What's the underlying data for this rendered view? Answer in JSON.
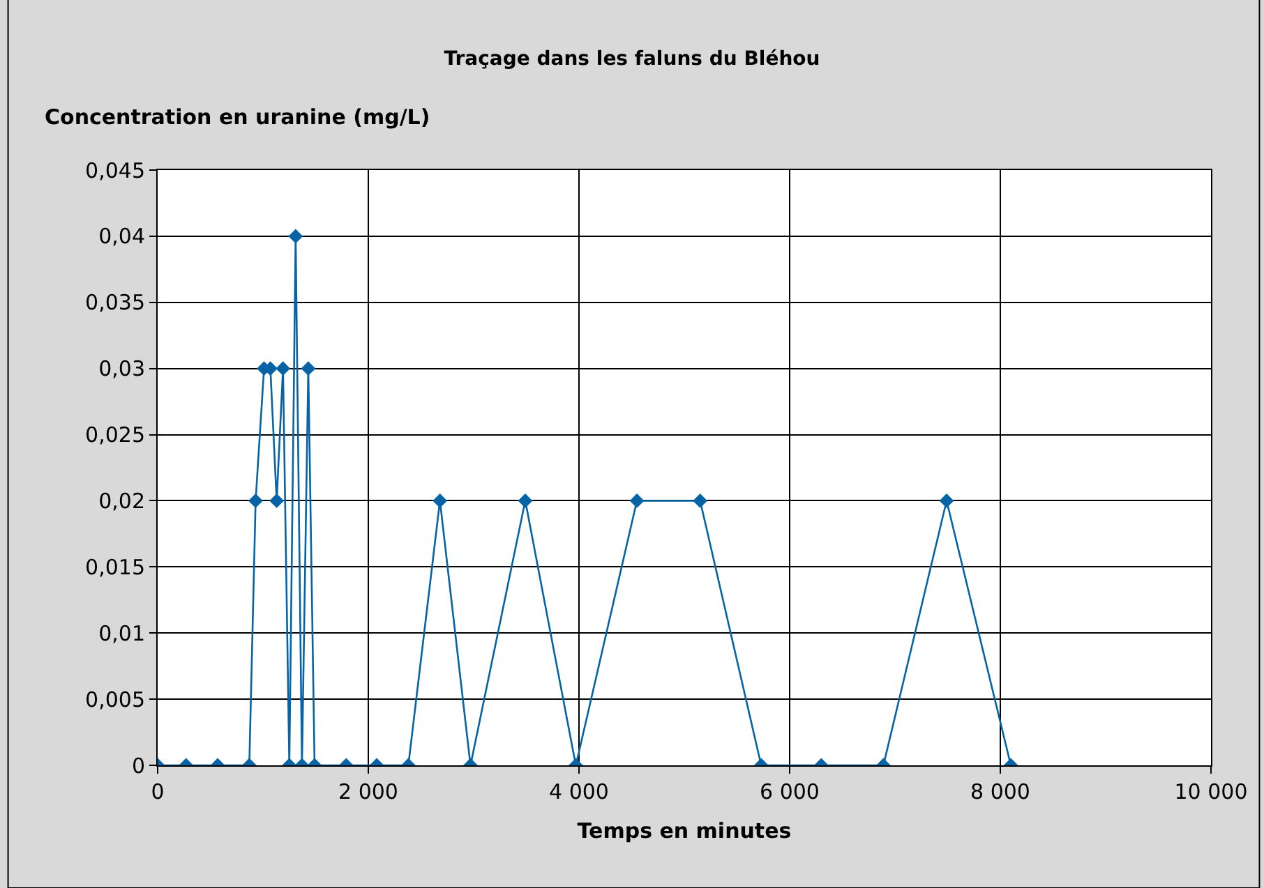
{
  "chart_data": {
    "type": "line",
    "title": "Traçage dans les faluns du Bléhou",
    "xlabel": "Temps en minutes",
    "ylabel": "Concentration en uranine (mg/L)",
    "x": [
      0,
      270,
      570,
      870,
      930,
      1010,
      1070,
      1130,
      1190,
      1250,
      1310,
      1370,
      1430,
      1490,
      1790,
      2080,
      2380,
      2680,
      2970,
      3490,
      3970,
      4550,
      5150,
      5730,
      6300,
      6890,
      7490,
      8100
    ],
    "series": [
      {
        "color": "#0563a6",
        "values": [
          0,
          0,
          0,
          0,
          0.02,
          0.03,
          0.03,
          0.02,
          0.03,
          0,
          0.04,
          0,
          0.03,
          0,
          0,
          0,
          0,
          0.02,
          0,
          0.02,
          0,
          0.02,
          0.02,
          0,
          0,
          0,
          0.02,
          0
        ]
      }
    ],
    "xlim": [
      0,
      10000
    ],
    "xticks": [
      0,
      {
        "value": 2000,
        "label": "2 000"
      },
      {
        "value": 4000,
        "label": "4 000"
      },
      {
        "value": 6000,
        "label": "6 000"
      },
      {
        "value": 8000,
        "label": "8 000"
      },
      {
        "value": 10000,
        "label": "10 000"
      }
    ],
    "ylim": [
      0,
      0.045
    ],
    "yticks": [
      0,
      {
        "value": 0.005,
        "label": "0,005"
      },
      {
        "value": 0.01,
        "label": "0,01"
      },
      {
        "value": 0.015,
        "label": "0,015"
      },
      {
        "value": 0.02,
        "label": "0,02"
      },
      {
        "value": 0.025,
        "label": "0,025"
      },
      {
        "value": 0.03,
        "label": "0,03"
      },
      {
        "value": 0.035,
        "label": "0,035"
      },
      {
        "value": 0.04,
        "label": "0,04"
      },
      {
        "value": 0.045,
        "label": "0,045"
      }
    ],
    "grid": true,
    "marker": "diamond",
    "line_style": "solid"
  }
}
